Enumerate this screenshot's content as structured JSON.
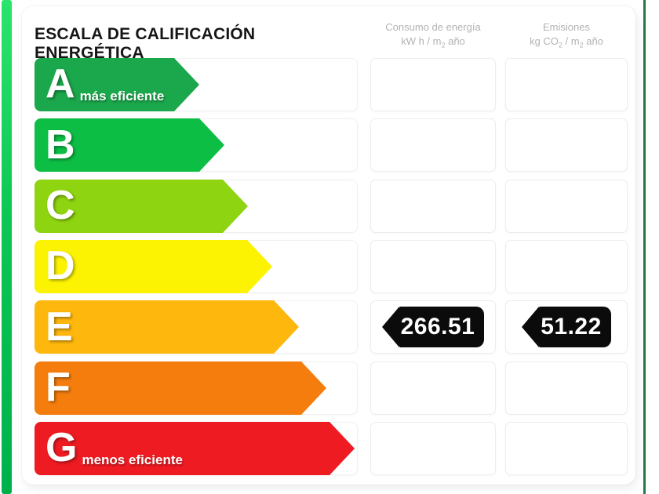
{
  "title": "ESCALA DE CALIFICACIÓN ENERGÉTICA",
  "columns": [
    {
      "title": "Consumo de energía",
      "unit_parts": [
        "kW h / m",
        "2",
        " año"
      ]
    },
    {
      "title": "Emisiones",
      "unit_parts": [
        "kg CO",
        "2",
        " / m",
        "2",
        " año"
      ]
    }
  ],
  "ratings": [
    {
      "letter": "A",
      "note": "más eficiente",
      "color": "#1BA74B"
    },
    {
      "letter": "B",
      "color": "#0DBE45"
    },
    {
      "letter": "C",
      "color": "#8FD411"
    },
    {
      "letter": "D",
      "color": "#FCF303"
    },
    {
      "letter": "E",
      "color": "#FEB70C",
      "consumption": "266.51",
      "emissions": "51.22"
    },
    {
      "letter": "F",
      "color": "#F57D0E"
    },
    {
      "letter": "G",
      "note": "menos eficiente",
      "color": "#EE1B22"
    }
  ],
  "badge_color": "#0b0b0b",
  "accent_colors": {
    "edge_left_green": "#0cc653",
    "edge_right_green": "#237a48"
  },
  "chart_data": {
    "type": "bar",
    "title": "ESCALA DE CALIFICACIÓN ENERGÉTICA",
    "categories": [
      "A",
      "B",
      "C",
      "D",
      "E",
      "F",
      "G"
    ],
    "series": [
      {
        "name": "Consumo de energía kW h / m2 año",
        "values": [
          null,
          null,
          null,
          null,
          266.51,
          null,
          null
        ]
      },
      {
        "name": "Emisiones kg CO2 / m2 año",
        "values": [
          null,
          null,
          null,
          null,
          51.22,
          null,
          null
        ]
      }
    ],
    "annotations": [
      "A = más eficiente",
      "G = menos eficiente",
      "rated class: E"
    ],
    "legend_position": "top",
    "grid": false
  }
}
